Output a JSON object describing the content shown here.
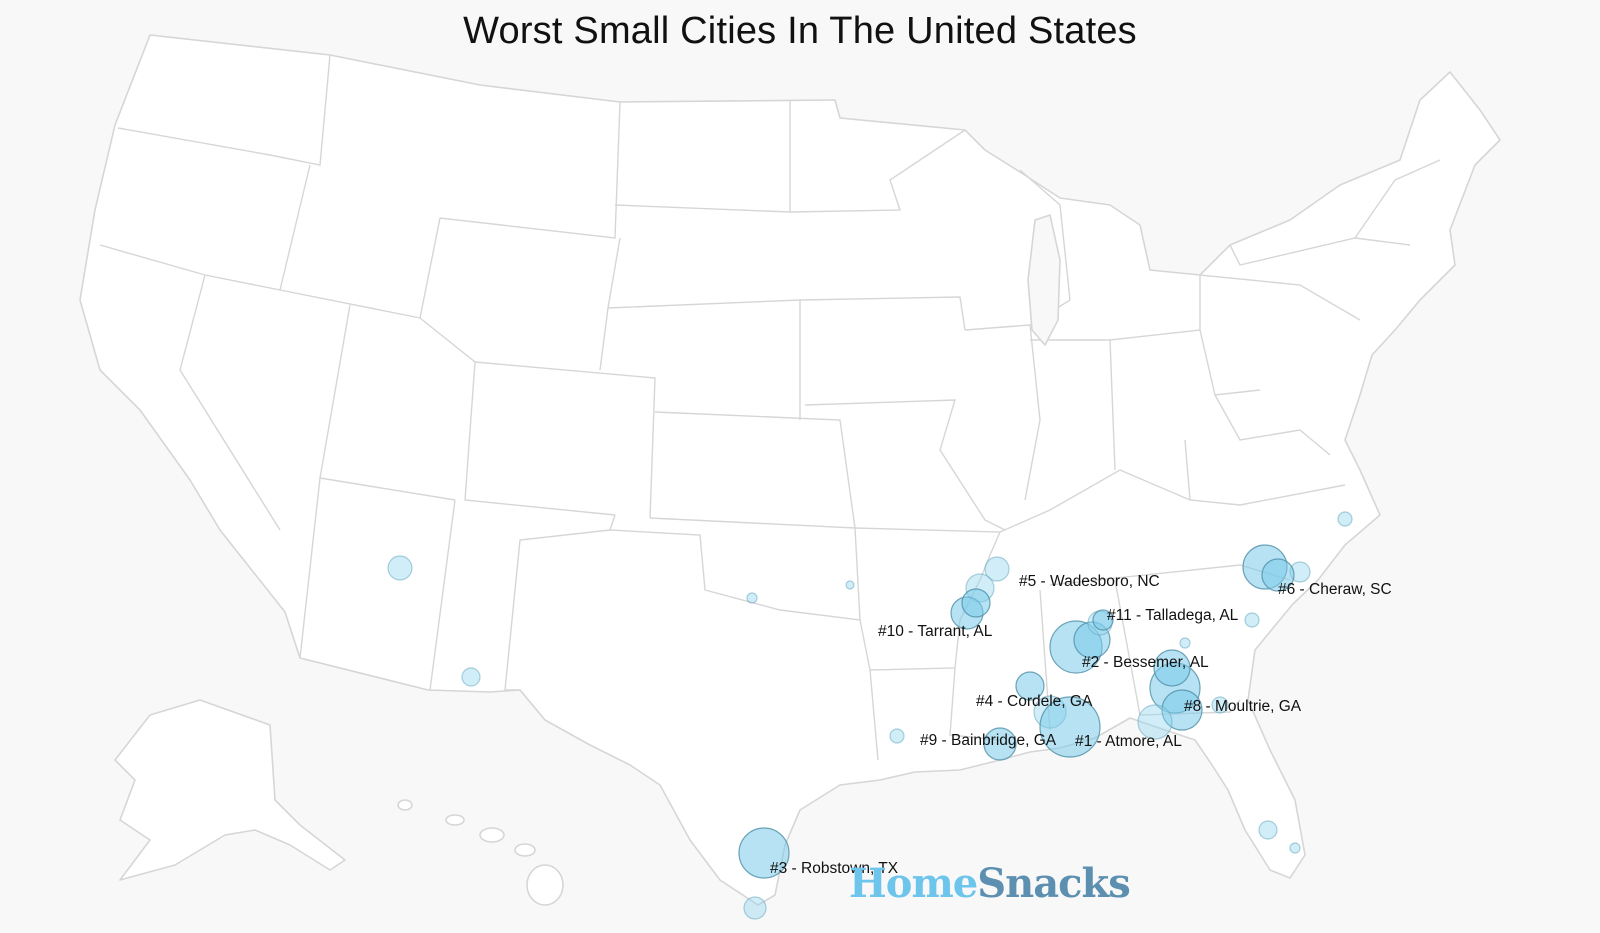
{
  "title": "Worst Small Cities In The United States",
  "brand": {
    "part1": "Home",
    "part2": "Snacks"
  },
  "colors": {
    "bubble": "#8fd3ee",
    "bubble_stroke": "#4e8ea6",
    "state_fill": "#ffffff",
    "state_border": "#d6d6d6",
    "background": "#f8f8f8"
  },
  "labels": [
    {
      "id": "rank-1",
      "text": "#1 - Atmore, AL"
    },
    {
      "id": "rank-2",
      "text": "#2 - Bessemer, AL"
    },
    {
      "id": "rank-3",
      "text": "#3 - Robstown, TX"
    },
    {
      "id": "rank-4",
      "text": "#4 - Cordele, GA"
    },
    {
      "id": "rank-5",
      "text": "#5 - Wadesboro, NC"
    },
    {
      "id": "rank-6",
      "text": "#6 - Cheraw, SC"
    },
    {
      "id": "rank-8",
      "text": "#8 - Moultrie, GA"
    },
    {
      "id": "rank-9",
      "text": "#9 - Bainbridge, GA"
    },
    {
      "id": "rank-10",
      "text": "#10 - Tarrant, AL"
    },
    {
      "id": "rank-11",
      "text": "#11 - Talladega, AL"
    }
  ]
}
